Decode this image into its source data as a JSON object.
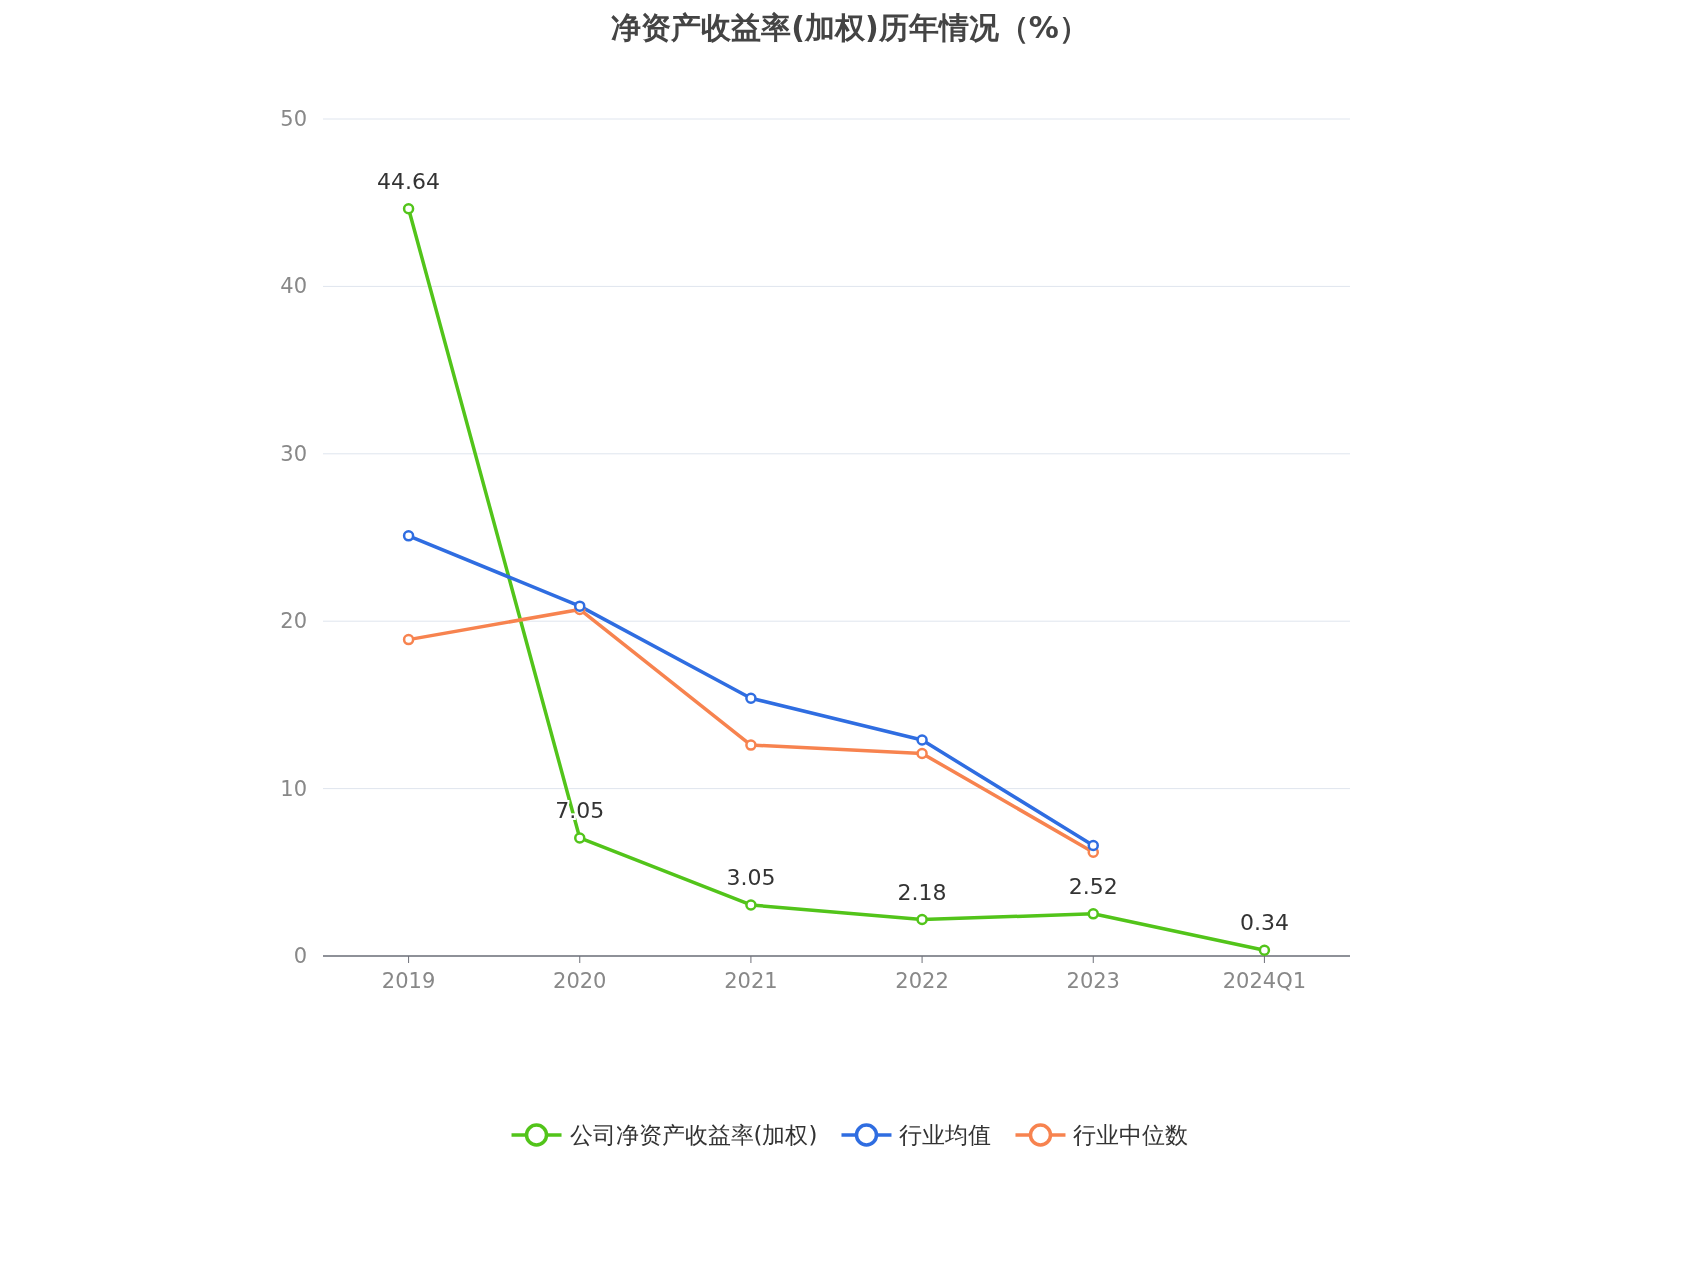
{
  "chart_data": {
    "type": "line",
    "title": "净资产收益率(加权)历年情况（%）",
    "categories": [
      "2019",
      "2020",
      "2021",
      "2022",
      "2023",
      "2024Q1"
    ],
    "series": [
      {
        "name": "公司净资产收益率(加权)",
        "color": "#52c41a",
        "values": [
          44.64,
          7.05,
          3.05,
          2.18,
          2.52,
          0.34
        ],
        "value_labels": [
          "44.64",
          "7.05",
          "3.05",
          "2.18",
          "2.52",
          "0.34"
        ]
      },
      {
        "name": "行业均值",
        "color": "#2f6de1",
        "values": [
          25.1,
          20.9,
          15.4,
          12.9,
          6.6,
          null
        ]
      },
      {
        "name": "行业中位数",
        "color": "#f7834f",
        "values": [
          18.9,
          20.7,
          12.6,
          12.1,
          6.2,
          null
        ]
      }
    ],
    "ylim": [
      0,
      50
    ],
    "yticks": [
      0,
      10,
      20,
      30,
      40,
      50
    ],
    "grid": "y",
    "legend": "bottom",
    "marker": "circle",
    "line_style": "solid"
  }
}
